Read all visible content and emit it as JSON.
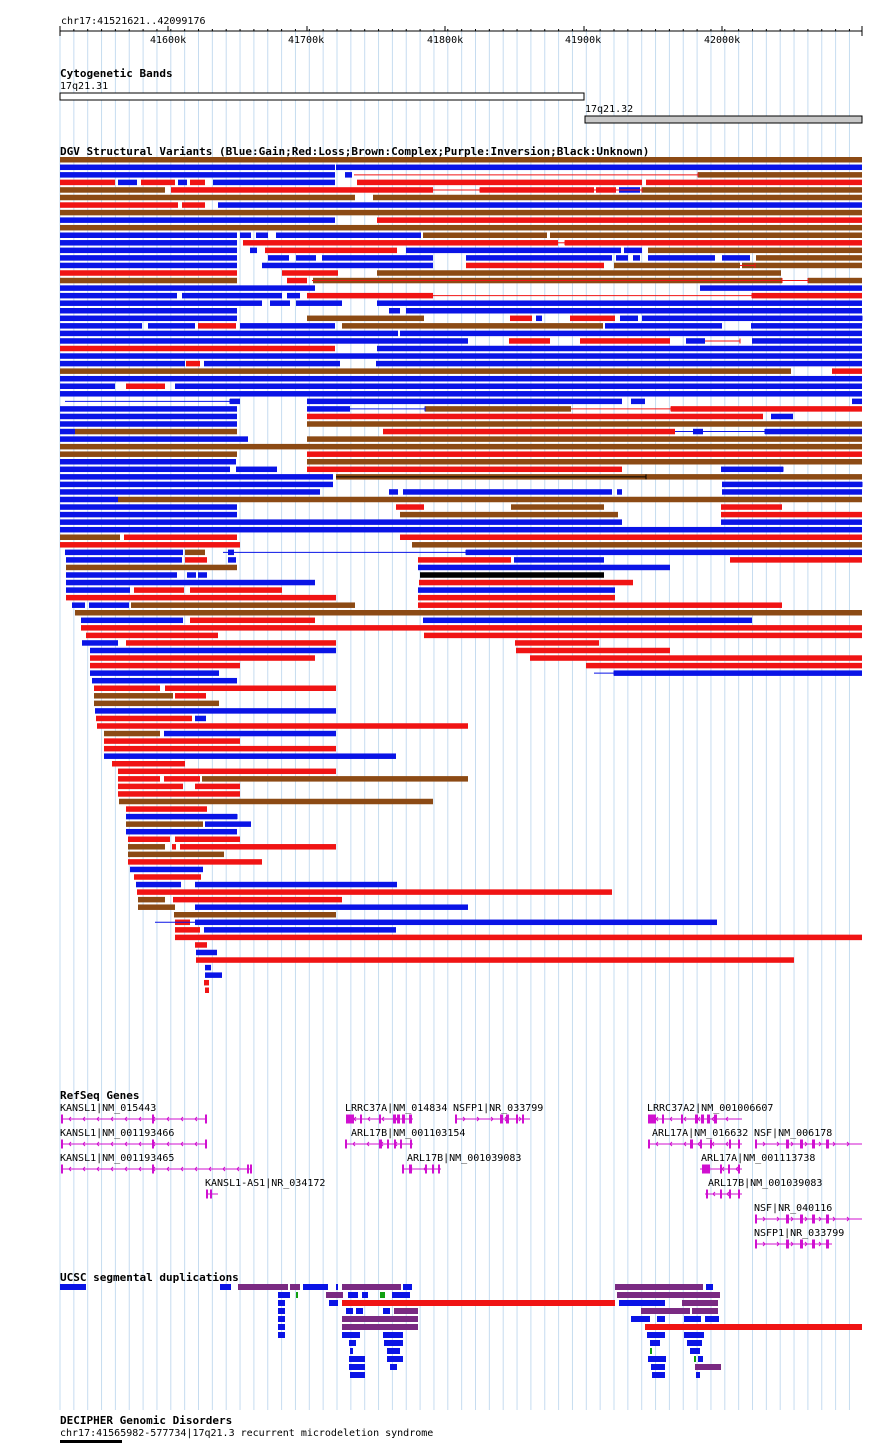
{
  "position": "chr17:41521621..42099176",
  "ruler": {
    "ticks": [
      {
        "label": "41600k",
        "pos": 41600000
      },
      {
        "label": "41700k",
        "pos": 41700000
      },
      {
        "label": "41800k",
        "pos": 41800000
      },
      {
        "label": "41900k",
        "pos": 41900000
      },
      {
        "label": "42000k",
        "pos": 42000000
      }
    ]
  },
  "tracks": {
    "cytoband": {
      "title": "Cytogenetic Bands",
      "bands": [
        {
          "name": "17q21.31",
          "color": "#ffffff"
        },
        {
          "name": "17q21.32",
          "color": "#c8c8c8"
        }
      ]
    },
    "dgv": {
      "title": "DGV Structural Variants (Blue:Gain;Red:Loss;Brown:Complex;Purple:Inversion;Black:Unknown)",
      "colors": {
        "gain": "#0a14e6",
        "loss": "#f01414",
        "complex": "#8c4a14",
        "inversion": "#7a2a82",
        "unknown": "#000000"
      }
    },
    "refseq": {
      "title": "RefSeq Genes",
      "color": "#d010d0",
      "genes": [
        "KANSL1|NM_015443",
        "KANSL1|NM_001193466",
        "KANSL1|NM_001193465",
        "KANSL1-AS1|NR_034172",
        "LRRC37A|NM_014834",
        "NSFP1|NR_033799",
        "ARL17B|NM_001103154",
        "ARL17B|NM_001039083",
        "LRRC37A2|NM_001006607",
        "ARL17A|NM_016632",
        "NSF|NM_006178",
        "ARL17A|NM_001113738",
        "ARL17B|NM_001039083",
        "NSF|NR_040116",
        "NSFP1|NR_033799"
      ]
    },
    "segdup": {
      "title": "UCSC segmental duplications",
      "colors": {
        "blue": "#0a14e6",
        "purple": "#7a2a82",
        "red": "#f01414",
        "green": "#10a010"
      }
    },
    "decipher": {
      "title": "DECIPHER Genomic Disorders",
      "label": "chr17:41565982-577734|17q21.3 recurrent microdeletion syndrome"
    }
  }
}
